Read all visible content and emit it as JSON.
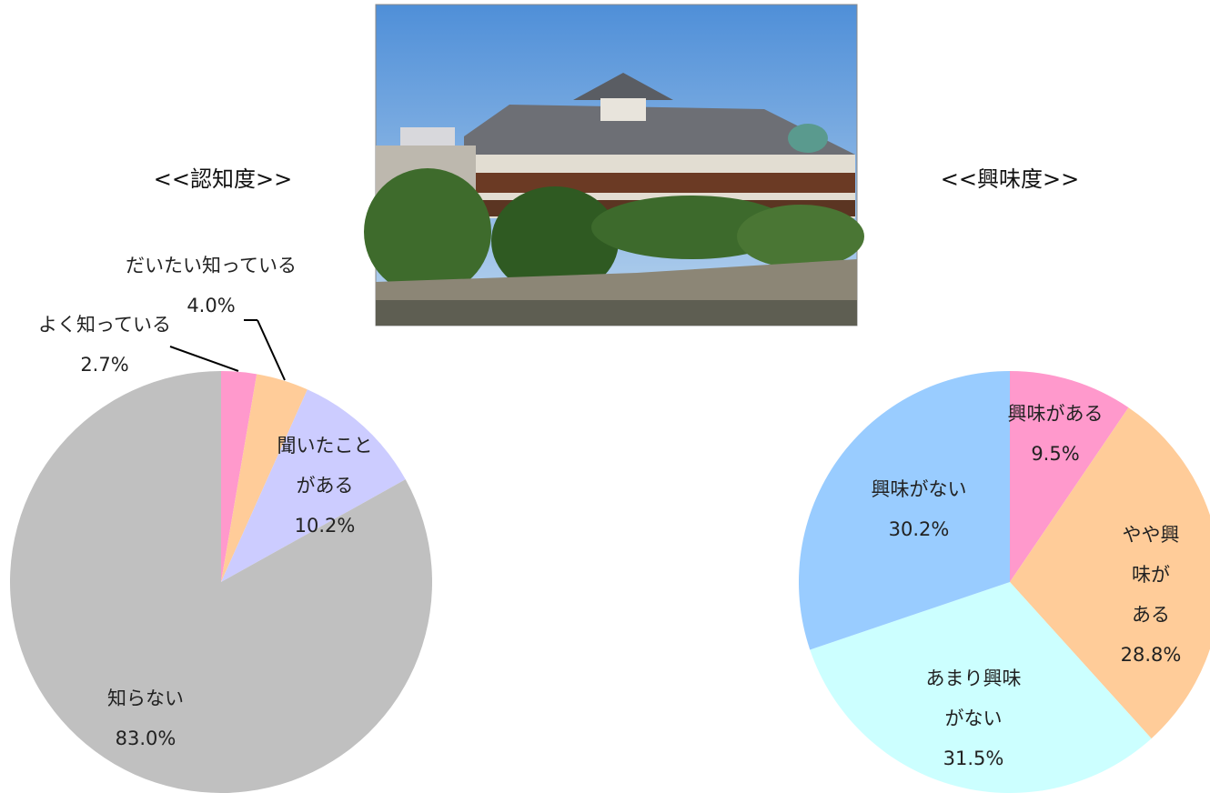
{
  "chart_data": [
    {
      "type": "pie",
      "title": "<<認知度>>",
      "categories": [
        "よく知っている",
        "だいたい知っている",
        "聞いたこと\nがある",
        "知らない"
      ],
      "values": [
        2.7,
        4.0,
        10.2,
        83.0
      ],
      "value_labels": [
        "2.7%",
        "4.0%",
        "10.2%",
        "83.0%"
      ],
      "colors": [
        "#ff99cc",
        "#ffcc99",
        "#ccccff",
        "#c0c0c0"
      ]
    },
    {
      "type": "pie",
      "title": "<<興味度>>",
      "categories": [
        "興味がある",
        "やや興味が\nある",
        "あまり興味\nがない",
        "興味がない"
      ],
      "values": [
        9.5,
        28.8,
        31.5,
        30.2
      ],
      "value_labels": [
        "9.5%",
        "28.8%",
        "31.5%",
        "30.2%"
      ],
      "colors": [
        "#ff99cc",
        "#ffcc99",
        "#ccffff",
        "#99ccff"
      ]
    }
  ]
}
